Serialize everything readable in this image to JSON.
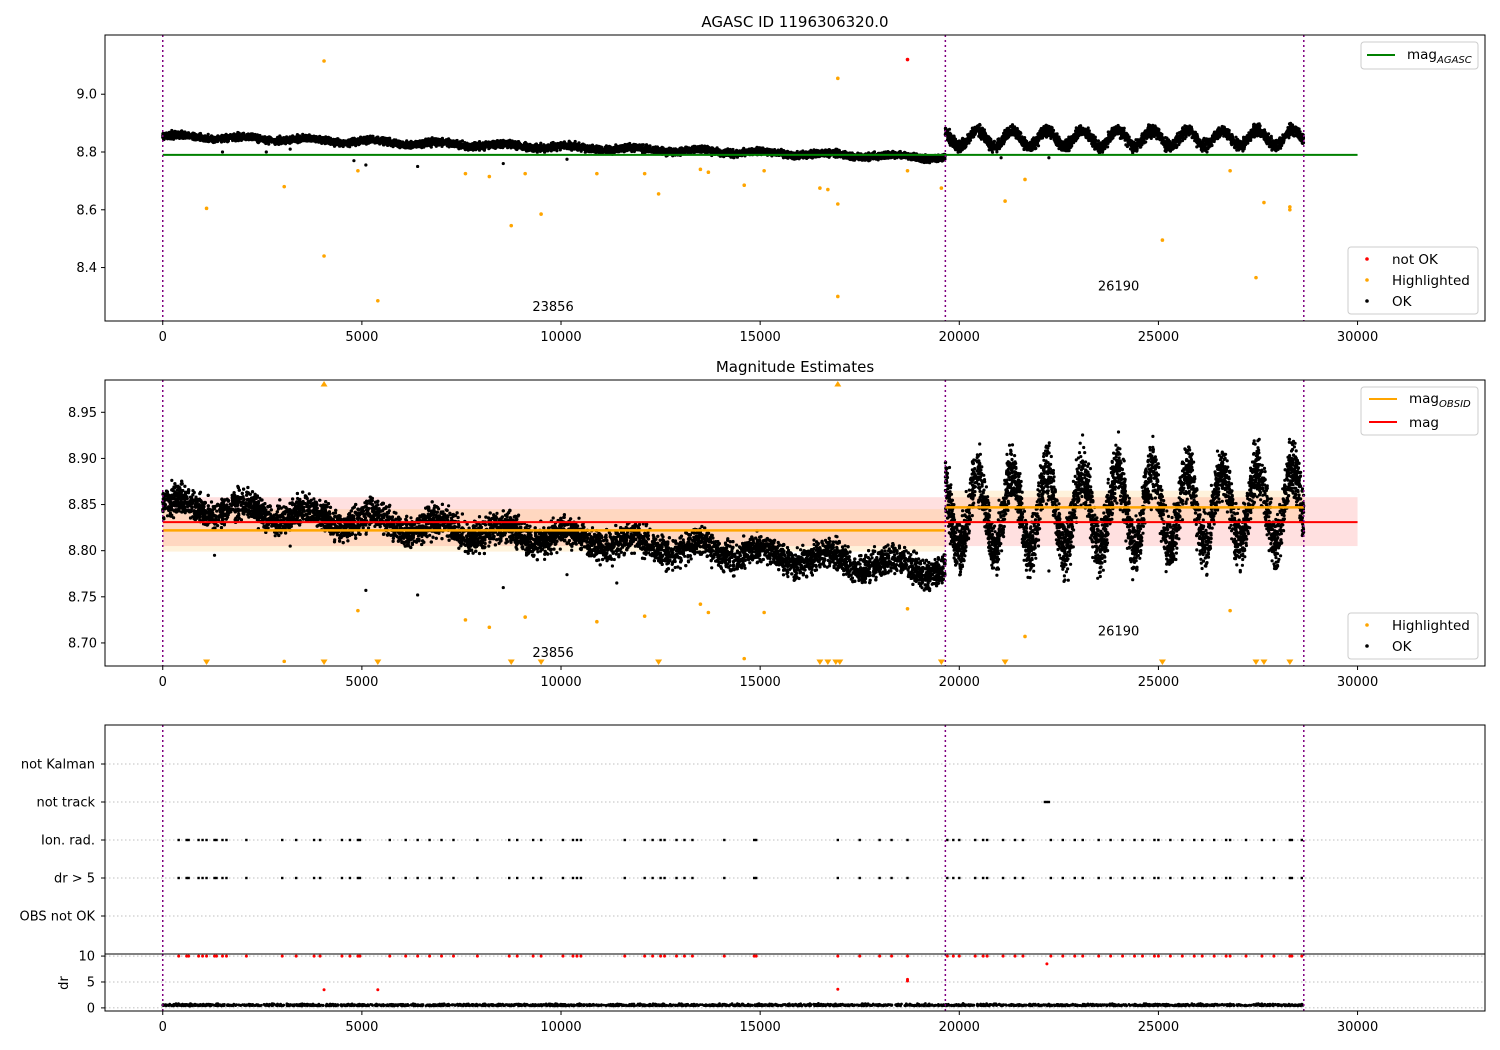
{
  "chart_data": [
    {
      "type": "scatter",
      "title": "AGASC ID 1196306320.0",
      "xlim": [
        -1450,
        33200
      ],
      "ylim": [
        8.215,
        9.205
      ],
      "xticks": [
        0,
        5000,
        10000,
        15000,
        20000,
        25000,
        30000
      ],
      "yticks": [
        8.4,
        8.6,
        8.8,
        9.0
      ],
      "ytick_labels": [
        "8.4",
        "8.6",
        "8.8",
        "9.0"
      ],
      "vlines": [
        0,
        19650,
        28650
      ],
      "hline": {
        "name": "mag",
        "subscript": "AGASC",
        "y": 8.79,
        "x": [
          0,
          30000
        ],
        "color": "#008000"
      },
      "obsid_labels": [
        {
          "text": "23856",
          "x": 9800,
          "y": 8.25
        },
        {
          "text": "26190",
          "x": 24000,
          "y": 8.32
        }
      ],
      "series": [
        {
          "name": "not OK",
          "color": "#ff0000",
          "points": [
            [
              18700,
              9.12
            ]
          ]
        },
        {
          "name": "Highlighted",
          "color": "#ffa500",
          "points": [
            [
              4050,
              9.115
            ],
            [
              16950,
              9.055
            ],
            [
              1100,
              8.605
            ],
            [
              3050,
              8.68
            ],
            [
              4050,
              8.44
            ],
            [
              4900,
              8.735
            ],
            [
              5400,
              8.285
            ],
            [
              7600,
              8.725
            ],
            [
              8200,
              8.715
            ],
            [
              8750,
              8.545
            ],
            [
              9100,
              8.725
            ],
            [
              9500,
              8.585
            ],
            [
              10900,
              8.725
            ],
            [
              12100,
              8.725
            ],
            [
              12450,
              8.655
            ],
            [
              13500,
              8.74
            ],
            [
              13700,
              8.73
            ],
            [
              14600,
              8.685
            ],
            [
              15100,
              8.735
            ],
            [
              16500,
              8.675
            ],
            [
              16700,
              8.67
            ],
            [
              16950,
              8.62
            ],
            [
              16950,
              8.3
            ],
            [
              18700,
              8.735
            ],
            [
              19550,
              8.675
            ],
            [
              21150,
              8.63
            ],
            [
              21650,
              8.705
            ],
            [
              25100,
              8.495
            ],
            [
              26800,
              8.735
            ],
            [
              27450,
              8.365
            ],
            [
              27650,
              8.625
            ],
            [
              28300,
              8.61
            ],
            [
              28300,
              8.6
            ]
          ]
        },
        {
          "name": "OK",
          "color": "#000000"
        }
      ],
      "ok_trend": [
        {
          "x0": 0,
          "x1": 19650,
          "y0": 8.855,
          "y1": 8.78,
          "spread": 0.03
        },
        {
          "x0": 19650,
          "x1": 28650,
          "y0": 8.845,
          "y1": 8.85,
          "spread": 0.05
        }
      ],
      "ok_outliers": [
        [
          1500,
          8.8
        ],
        [
          2600,
          8.8
        ],
        [
          3200,
          8.81
        ],
        [
          4800,
          8.77
        ],
        [
          5100,
          8.755
        ],
        [
          6400,
          8.75
        ],
        [
          8550,
          8.76
        ],
        [
          10150,
          8.775
        ],
        [
          21050,
          8.78
        ],
        [
          22250,
          8.78
        ]
      ],
      "legend": {
        "upper": [
          "mag_AGASC"
        ],
        "lower": [
          "not OK",
          "Highlighted",
          "OK"
        ]
      }
    },
    {
      "type": "scatter",
      "title": "Magnitude Estimates",
      "xlim": [
        -1450,
        33200
      ],
      "ylim": [
        8.675,
        8.985
      ],
      "xticks": [
        0,
        5000,
        10000,
        15000,
        20000,
        25000,
        30000
      ],
      "yticks": [
        8.7,
        8.75,
        8.8,
        8.85,
        8.9,
        8.95
      ],
      "ytick_labels": [
        "8.70",
        "8.75",
        "8.80",
        "8.85",
        "8.90",
        "8.95"
      ],
      "vlines": [
        0,
        19650,
        28650
      ],
      "mag": {
        "name": "mag",
        "y": 8.831,
        "band": [
          8.805,
          8.858
        ],
        "x": [
          0,
          30000
        ],
        "color": "#ff0000"
      },
      "mag_obsid": {
        "name": "mag",
        "subscript": "OBSID",
        "color": "#ffa500",
        "segments": [
          {
            "x0": 0,
            "x1": 19650,
            "y": 8.822,
            "band": [
              8.799,
              8.845
            ]
          },
          {
            "x0": 19650,
            "x1": 28650,
            "y": 8.847,
            "band": [
              8.83,
              8.865
            ]
          }
        ]
      },
      "obsid_labels": [
        {
          "text": "23856",
          "x": 9800,
          "y": 8.685
        },
        {
          "text": "26190",
          "x": 24000,
          "y": 8.708
        }
      ],
      "series": [
        {
          "name": "Highlighted",
          "color": "#ffa500",
          "points": [
            [
              4900,
              8.735
            ],
            [
              7600,
              8.725
            ],
            [
              8200,
              8.717
            ],
            [
              9100,
              8.728
            ],
            [
              10900,
              8.723
            ],
            [
              12100,
              8.729
            ],
            [
              13500,
              8.742
            ],
            [
              13700,
              8.733
            ],
            [
              14600,
              8.683
            ],
            [
              15100,
              8.733
            ],
            [
              18700,
              8.737
            ],
            [
              21650,
              8.707
            ],
            [
              26800,
              8.735
            ],
            [
              3050,
              8.68
            ]
          ],
          "up_markers": [
            4050,
            16950
          ],
          "down_markers": [
            1100,
            4050,
            5400,
            8750,
            9500,
            12450,
            16500,
            16700,
            16900,
            17000,
            19550,
            21150,
            25100,
            27450,
            27650,
            28300
          ]
        },
        {
          "name": "OK",
          "color": "#000000"
        }
      ],
      "ok_trend": [
        {
          "x0": 0,
          "x1": 19650,
          "y0": 8.85,
          "y1": 8.78,
          "spread": 0.04
        },
        {
          "x0": 19650,
          "x1": 28650,
          "y0": 8.84,
          "y1": 8.85,
          "spread": 0.075
        }
      ],
      "ok_outliers": [
        [
          1300,
          8.795
        ],
        [
          3200,
          8.805
        ],
        [
          5100,
          8.757
        ],
        [
          6400,
          8.752
        ],
        [
          8550,
          8.76
        ],
        [
          10150,
          8.774
        ],
        [
          11400,
          8.765
        ],
        [
          22250,
          8.778
        ]
      ],
      "legend": {
        "upper": [
          "mag_OBSID",
          "mag"
        ],
        "lower": [
          "Highlighted",
          "OK"
        ]
      }
    },
    {
      "type": "scatter",
      "title": "",
      "xlim": [
        -1450,
        33200
      ],
      "categories": [
        "OBS not OK",
        "dr > 5",
        "Ion. rad.",
        "not track",
        "not Kalman"
      ],
      "vlines": [
        0,
        19650,
        28650
      ],
      "flag_x": [
        400,
        600,
        650,
        900,
        1000,
        1100,
        1300,
        1350,
        1500,
        1600,
        2100,
        3000,
        3350,
        3800,
        3950,
        4500,
        4700,
        4900,
        4950,
        5700,
        6100,
        6400,
        6700,
        7000,
        7300,
        7900,
        8700,
        8900,
        9300,
        9500,
        10050,
        10300,
        10400,
        10500,
        11600,
        12100,
        12300,
        12500,
        12600,
        12900,
        13100,
        13300,
        14100,
        14850,
        14900,
        16950,
        17500,
        18000,
        18300,
        18700,
        19700,
        19850,
        20000,
        20400,
        20600,
        20700,
        21100,
        21400,
        21600,
        22300,
        22600,
        22900,
        23100,
        23500,
        23800,
        24100,
        24400,
        24600,
        24900,
        25000,
        25300,
        25600,
        25900,
        26100,
        26400,
        26700,
        26800,
        27200,
        27600,
        27900,
        28300,
        28350,
        28600
      ],
      "not_track_x": [
        22150,
        22200,
        22250
      ]
    },
    {
      "type": "scatter",
      "title": "",
      "ylabel": "dr",
      "xlim": [
        -1450,
        33200
      ],
      "ylim": [
        -0.6,
        10.4
      ],
      "xticks": [
        0,
        5000,
        10000,
        15000,
        20000,
        25000,
        30000
      ],
      "yticks": [
        0,
        5,
        10
      ],
      "ytick_labels": [
        "0",
        "5",
        "10"
      ],
      "vlines": [
        0,
        19650,
        28650
      ],
      "series": [
        {
          "name": "dr > 5",
          "color": "#ff0000",
          "at_value": 10,
          "extra_points": [
            [
              4050,
              3.5
            ],
            [
              5400,
              3.5
            ],
            [
              16950,
              3.6
            ],
            [
              18700,
              5.2
            ],
            [
              18700,
              5.5
            ],
            [
              22200,
              8.5
            ]
          ]
        },
        {
          "name": "dr",
          "color": "#000000",
          "baseline": 0.4,
          "spread": 0.5
        }
      ]
    }
  ]
}
